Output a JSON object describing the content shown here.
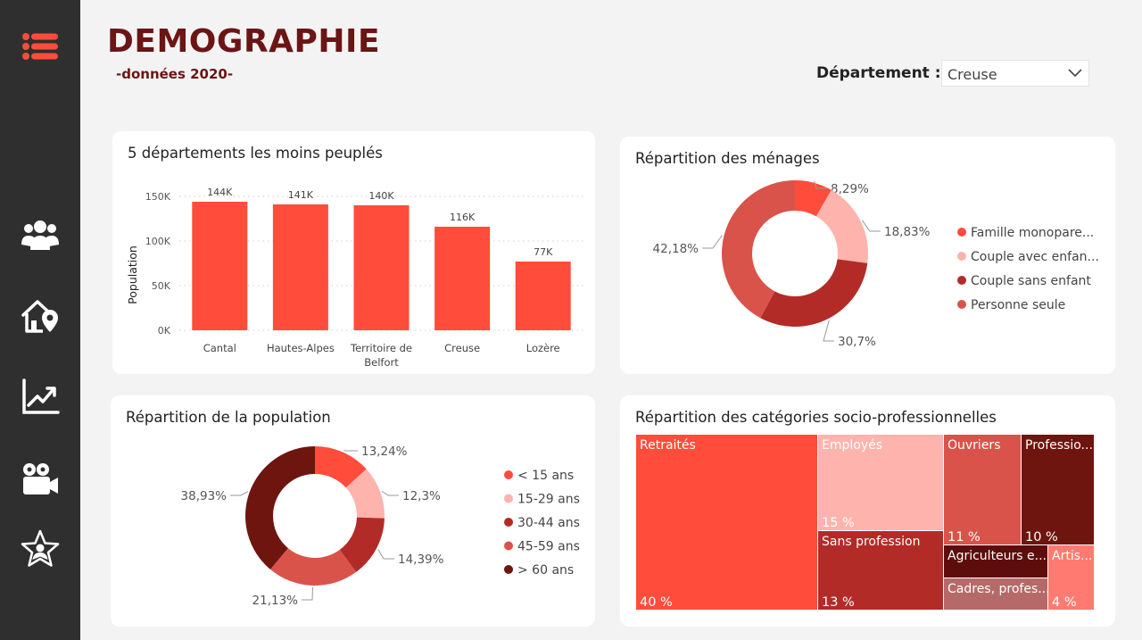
{
  "header": {
    "title": "DEMOGRAPHIE",
    "subtitle": "-données 2020-",
    "department_label": "Département :",
    "department_value": "Creuse"
  },
  "sidebar": {
    "items": [
      {
        "icon": "menu-icon"
      },
      {
        "icon": "people-icon"
      },
      {
        "icon": "house-location-icon"
      },
      {
        "icon": "trend-chart-icon"
      },
      {
        "icon": "video-camera-icon"
      },
      {
        "icon": "star-person-icon"
      }
    ]
  },
  "colors": {
    "accent": "#ff4c3b",
    "title": "#6b1515",
    "sidebar": "#2f2f2f"
  },
  "chart_data": [
    {
      "id": "bar",
      "type": "bar",
      "title": "5 départements les moins peuplés",
      "ylabel": "Population",
      "categories": [
        "Cantal",
        "Hautes-Alpes",
        "Territoire de Belfort",
        "Creuse",
        "Lozère"
      ],
      "category_lines": [
        [
          "Cantal"
        ],
        [
          "Hautes-Alpes"
        ],
        [
          "Territoire de",
          "Belfort"
        ],
        [
          "Creuse"
        ],
        [
          "Lozère"
        ]
      ],
      "values": [
        144000,
        141000,
        140000,
        116000,
        77000
      ],
      "data_labels": [
        "144K",
        "141K",
        "140K",
        "116K",
        "77K"
      ],
      "yticks": [
        0,
        50000,
        100000,
        150000
      ],
      "ytick_labels": [
        "0K",
        "50K",
        "100K",
        "150K"
      ],
      "ylim": [
        0,
        160000
      ],
      "color": "#ff4c3b",
      "grid": true
    },
    {
      "id": "menages",
      "type": "pie",
      "title": "Répartition des ménages",
      "categories": [
        "Famille monopare...",
        "Couple avec enfan...",
        "Couple sans enfant",
        "Personne seule"
      ],
      "values": [
        8.29,
        18.83,
        30.7,
        42.18
      ],
      "data_labels": [
        "8,29%",
        "18,83%",
        "30,7%",
        "42,18%"
      ],
      "colors": [
        "#ff4c3b",
        "#ffb3ad",
        "#b32b27",
        "#d9534a"
      ],
      "legend": "right"
    },
    {
      "id": "population",
      "type": "pie",
      "title": "Répartition de la population",
      "categories": [
        "< 15 ans",
        "15-29 ans",
        "30-44 ans",
        "45-59 ans",
        "> 60 ans"
      ],
      "values": [
        13.24,
        12.3,
        14.39,
        21.13,
        38.93
      ],
      "data_labels": [
        "13,24%",
        "12,3%",
        "14,39%",
        "21,13%",
        "38,93%"
      ],
      "colors": [
        "#ff4c3b",
        "#ffb3ad",
        "#b32b27",
        "#d9534a",
        "#6e1510"
      ],
      "legend": "right"
    },
    {
      "id": "csp",
      "type": "treemap",
      "title": "Répartition des catégories socio-professionnelles",
      "categories": [
        "Retraités",
        "Employés",
        "Sans profession",
        "Ouvriers",
        "Professio...",
        "Agriculteurs e...",
        "Cadres, profes...",
        "Artis..."
      ],
      "values": [
        40,
        15,
        13,
        11,
        10,
        null,
        null,
        4
      ],
      "data_labels": [
        "40 %",
        "15 %",
        "13 %",
        "11 %",
        "10 %",
        "",
        "",
        "4 %"
      ],
      "colors": [
        "#ff4c3b",
        "#ffb3ad",
        "#b32b27",
        "#d9534a",
        "#6e1510",
        "#5e0d0d",
        "#b56a69",
        "#ff7a70"
      ]
    }
  ]
}
